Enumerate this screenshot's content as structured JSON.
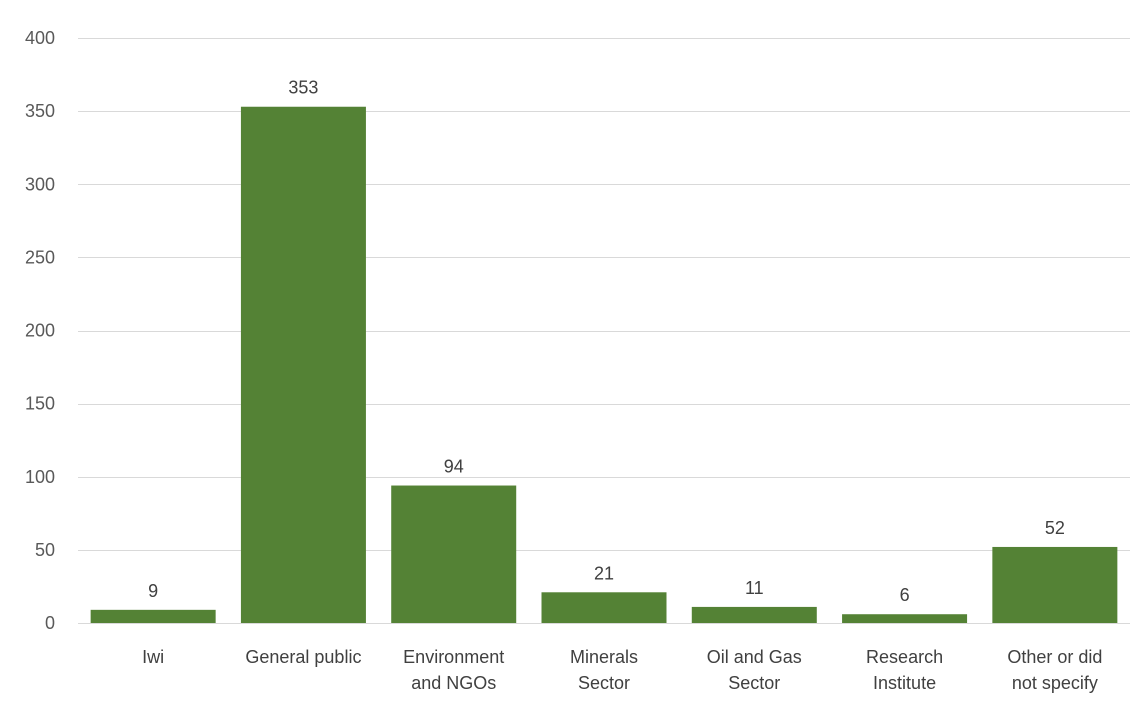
{
  "chart_data": {
    "type": "bar",
    "categories": [
      "Iwi",
      "General public",
      "Environment and NGOs",
      "Minerals Sector",
      "Oil and Gas Sector",
      "Research Institute",
      "Other or did not specify"
    ],
    "category_lines": [
      [
        "Iwi"
      ],
      [
        "General public"
      ],
      [
        "Environment",
        "and NGOs"
      ],
      [
        "Minerals",
        "Sector"
      ],
      [
        "Oil and Gas",
        "Sector"
      ],
      [
        "Research",
        "Institute"
      ],
      [
        "Other or did",
        "not specify"
      ]
    ],
    "values": [
      9,
      353,
      94,
      21,
      11,
      6,
      52
    ],
    "data_labels": [
      "9",
      "353",
      "94",
      "21",
      "11",
      "6",
      "52"
    ],
    "title": "",
    "xlabel": "",
    "ylabel": "",
    "ylim": [
      0,
      400
    ],
    "yticks": [
      0,
      50,
      100,
      150,
      200,
      250,
      300,
      350,
      400
    ],
    "ytick_labels": [
      "0",
      "50",
      "100",
      "150",
      "200",
      "250",
      "300",
      "350",
      "400"
    ],
    "grid": true,
    "legend": "none",
    "bar_color": "#548235"
  }
}
